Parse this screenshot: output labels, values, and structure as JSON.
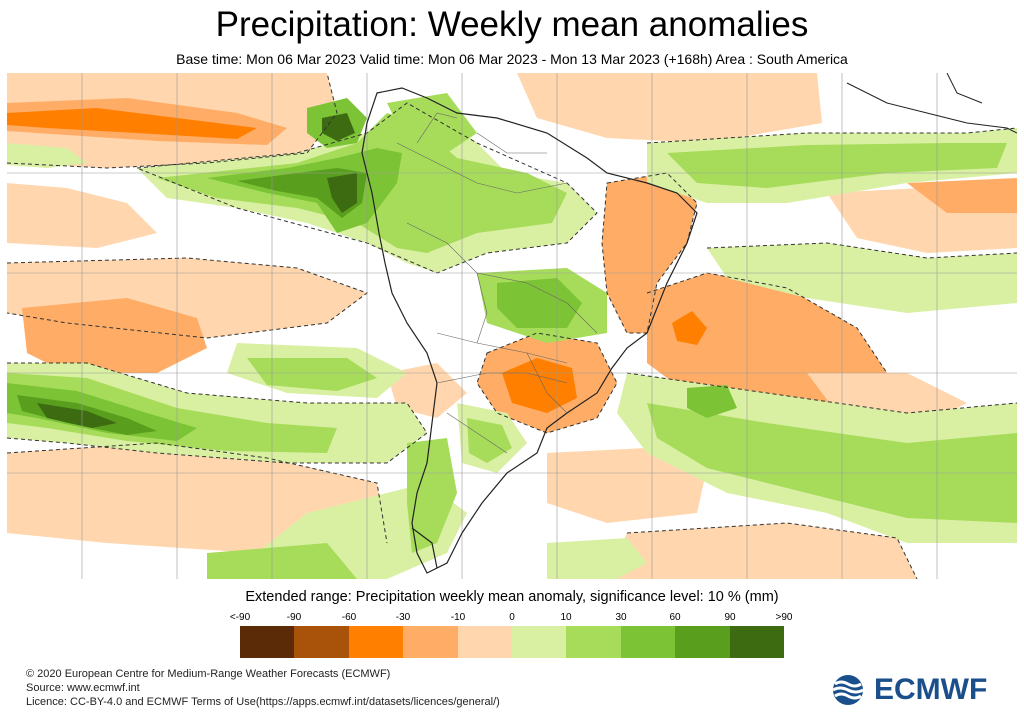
{
  "title": "Precipitation: Weekly mean anomalies",
  "subtitle": "Base time: Mon 06 Mar 2023 Valid time: Mon 06 Mar 2023 - Mon 13 Mar 2023 (+168h) Area : South America",
  "legend": {
    "title": "Extended range: Precipitation weekly mean anomaly, significance level: 10 % (mm)",
    "ticks": [
      "<-90",
      "-90",
      "-60",
      "-30",
      "-10",
      "0",
      "10",
      "30",
      "60",
      "90",
      ">90"
    ],
    "colors": [
      "#5b2a06",
      "#a8520a",
      "#ff7f00",
      "#ffad66",
      "#ffd6ad",
      "#d9f0a3",
      "#a6dc5a",
      "#7cc436",
      "#5a9e1e",
      "#3d6b12"
    ]
  },
  "palette": {
    "dry_strong": "#ff7f00",
    "dry_moderate": "#ffad66",
    "dry_weak": "#ffd6ad",
    "wet_weak": "#d9f0a3",
    "wet_moderate": "#a6dc5a",
    "wet_strong": "#7cc436",
    "wet_very_strong": "#5a9e1e",
    "wet_extreme": "#3d6b12"
  },
  "footer": {
    "copyright": "© 2020 European Centre for Medium-Range Weather Forecasts (ECMWF)",
    "source": "Source: www.ecmwf.int",
    "licence": "Licence: CC-BY-4.0 and ECMWF Terms of Use(https://apps.ecmwf.int/datasets/licences/general/)"
  },
  "logo": {
    "text": "ECMWF",
    "color": "#1a4f8b"
  }
}
